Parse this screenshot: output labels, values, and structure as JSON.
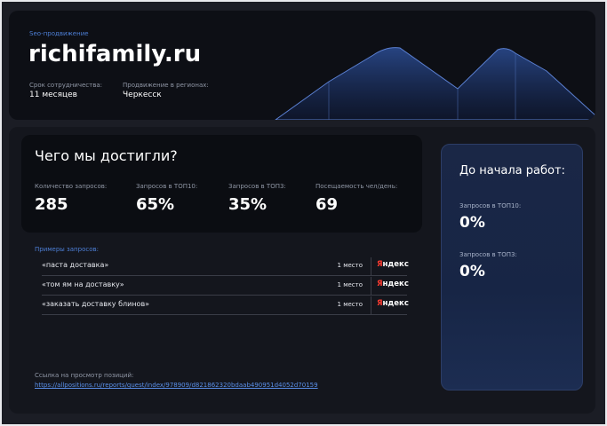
{
  "header": {
    "tag": "Seo-продвижение",
    "title": "richifamily.ru",
    "fields": [
      {
        "label": "Срок сотрудничества:",
        "value": "11 месяцев"
      },
      {
        "label": "Продвижение в регионах:",
        "value": "Черкесск"
      }
    ]
  },
  "achievements": {
    "title": "Чего мы достигли?",
    "stats": [
      {
        "label": "Количество запросов:",
        "value": "285"
      },
      {
        "label": "Запросов в ТОП10:",
        "value": "65%"
      },
      {
        "label": "Запросов в ТОП3:",
        "value": "35%"
      },
      {
        "label": "Посещаемость чел/день:",
        "value": "69"
      }
    ]
  },
  "queries": {
    "label": "Примеры запросов:",
    "rows": [
      {
        "query": "«паста доставка»",
        "position": "1 место",
        "engine": "Яндекс"
      },
      {
        "query": "«том ям на доставку»",
        "position": "1 место",
        "engine": "Яндекс"
      },
      {
        "query": "«заказать доставку блинов»",
        "position": "1 место",
        "engine": "Яндекс"
      }
    ]
  },
  "link": {
    "label": "Ссылка на просмотр позиций:",
    "url": "https://allpositions.ru/reports/quest/index/978909/d821862320bdaab490951d4052d70159"
  },
  "before": {
    "title": "До начала работ:",
    "stats": [
      {
        "label": "Запросов в ТОП10:",
        "value": "0%"
      },
      {
        "label": "Запросов в ТОП3:",
        "value": "0%"
      }
    ]
  }
}
